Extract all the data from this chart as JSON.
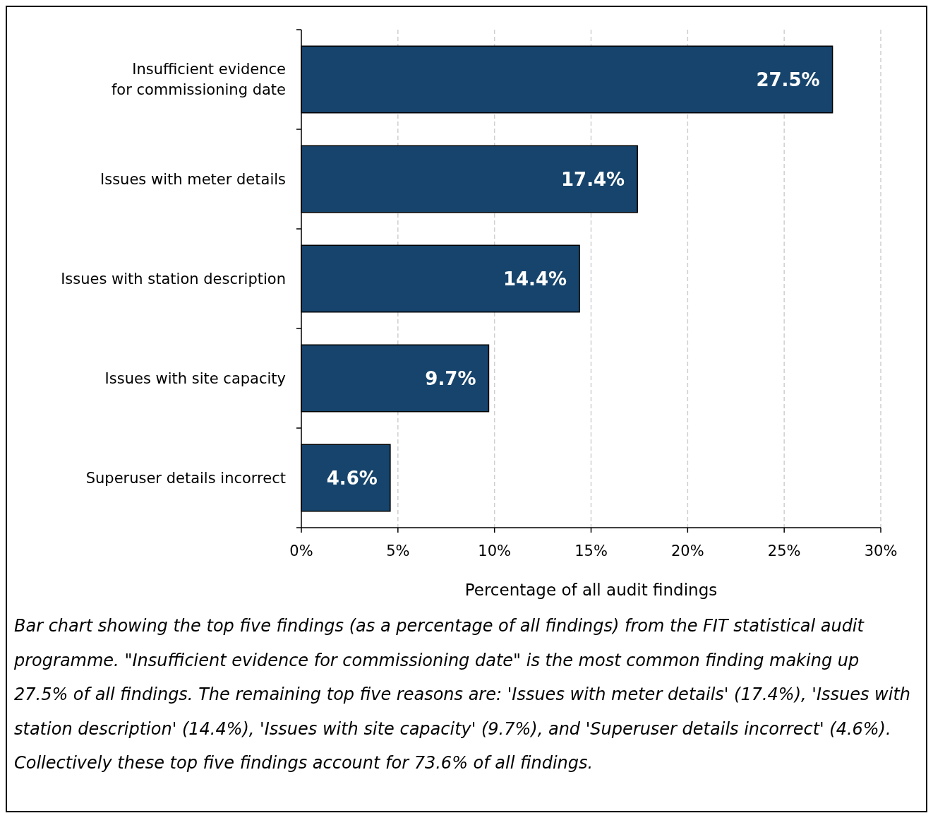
{
  "chart_data": {
    "type": "bar",
    "orientation": "horizontal",
    "categories": [
      "Insufficient evidence for commissioning date",
      "Issues with meter details",
      "Issues with station description",
      "Issues with site capacity",
      "Superuser details incorrect"
    ],
    "values": [
      27.5,
      17.4,
      14.4,
      9.7,
      4.6
    ],
    "value_labels": [
      "27.5%",
      "17.4%",
      "14.4%",
      "9.7%",
      "4.6%"
    ],
    "color": "#16446c",
    "xlim": [
      0,
      30
    ],
    "xticks": [
      {
        "value": 0,
        "label": "0%"
      },
      {
        "value": 5,
        "label": "5%"
      },
      {
        "value": 10,
        "label": "10%"
      },
      {
        "value": 15,
        "label": "15%"
      },
      {
        "value": 20,
        "label": "20%"
      },
      {
        "value": 25,
        "label": "25%"
      },
      {
        "value": 30,
        "label": "30%"
      }
    ],
    "grid": "x",
    "xlabel": "Percentage of all audit findings",
    "annotations": [
      "Bar chart showing the top five findings (as a percentage of all findings) from the FIT statistical audit programme. \"Insufficient evidence for commissioning date\" is the most common finding making up 27.5% of all findings. The remaining top five reasons are: 'Issues with meter details' (17.4%), 'Issues with station description' (14.4%), 'Issues with site capacity' (9.7%), and 'Superuser details incorrect' (4.6%). Collectively these top five findings account for 73.6% of all findings."
    ]
  }
}
